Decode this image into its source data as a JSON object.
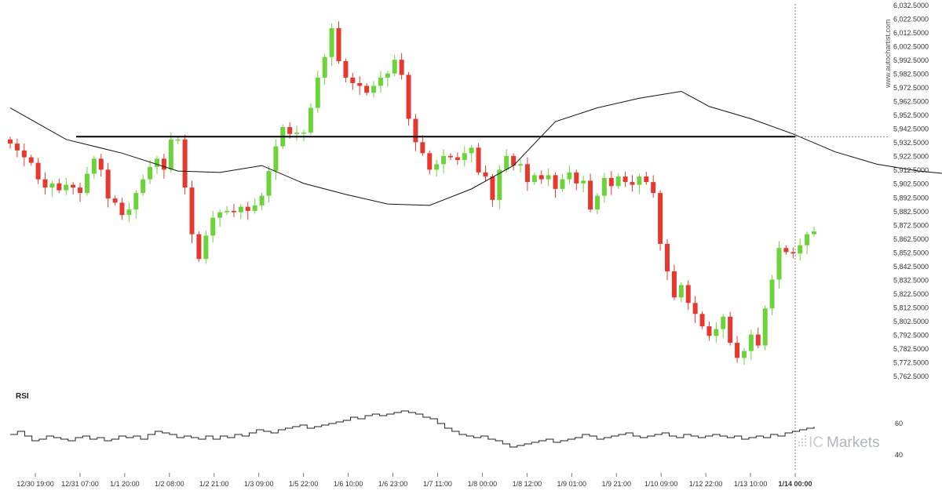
{
  "chart_data": [
    {
      "type": "candlestick",
      "title": "",
      "watermark": "www.autochartist.com",
      "y_tick_labels": [
        "6,032.5000",
        "6,022.5000",
        "6,012.5000",
        "6,002.5000",
        "5,992.5000",
        "5,982.5000",
        "5,972.5000",
        "5,962.5000",
        "5,952.5000",
        "5,942.5000",
        "5,932.5000",
        "5,922.5000",
        "5,912.5000",
        "5,902.5000",
        "5,892.5000",
        "5,882.5000",
        "5,872.5000",
        "5,862.5000",
        "5,852.5000",
        "5,842.5000",
        "5,832.5000",
        "5,822.5000",
        "5,812.5000",
        "5,802.5000",
        "5,792.5000",
        "5,782.5000",
        "5,772.5000",
        "5,762.5000"
      ],
      "ylim": [
        5762.5,
        6032.5
      ],
      "x_tick_labels": [
        "12/30 19:00",
        "12/31 07:00",
        "1/1 20:00",
        "1/2 08:00",
        "1/2 21:00",
        "1/3 09:00",
        "1/5 22:00",
        "1/6 10:00",
        "1/6 23:00",
        "1/7 11:00",
        "1/8 00:00",
        "1/8 12:00",
        "1/9 01:00",
        "1/9 21:00",
        "1/10 09:00",
        "1/12 22:00",
        "1/13 10:00",
        "1/14 00:00"
      ],
      "highlight_x_label": "1/14 00:00",
      "close_path": [
        5932,
        5927,
        5922,
        5918,
        5906,
        5900,
        5903,
        5898,
        5902,
        5900,
        5896,
        5910,
        5921,
        5913,
        5892,
        5889,
        5880,
        5884,
        5896,
        5906,
        5915,
        5921,
        5913,
        5935,
        5935,
        5900,
        5866,
        5848,
        5865,
        5878,
        5882,
        5883,
        5882,
        5886,
        5883,
        5887,
        5894,
        5912,
        5930,
        5944,
        5939,
        5940,
        5940,
        5958,
        5980,
        5995,
        6016,
        5992,
        5980,
        5976,
        5974,
        5969,
        5974,
        5980,
        5983,
        5993,
        5982,
        5950,
        5933,
        5925,
        5913,
        5917,
        5923,
        5922,
        5920,
        5925,
        5929,
        5911,
        5908,
        5891,
        5913,
        5923,
        5916,
        5917,
        5904,
        5909,
        5906,
        5909,
        5899,
        5906,
        5911,
        5903,
        5905,
        5884,
        5894,
        5907,
        5901,
        5908,
        5904,
        5902,
        5908,
        5904,
        5896,
        5859,
        5839,
        5820,
        5829,
        5816,
        5808,
        5799,
        5792,
        5797,
        5806,
        5787,
        5776,
        5781,
        5793,
        5785,
        5812,
        5833,
        5856,
        5853,
        5852,
        5858,
        5866,
        5868
      ],
      "moving_average": [
        {
          "x": 0,
          "y": 5958
        },
        {
          "x": 8,
          "y": 5935
        },
        {
          "x": 16,
          "y": 5925
        },
        {
          "x": 24,
          "y": 5912
        },
        {
          "x": 30,
          "y": 5911
        },
        {
          "x": 36,
          "y": 5916
        },
        {
          "x": 42,
          "y": 5903
        },
        {
          "x": 48,
          "y": 5895
        },
        {
          "x": 54,
          "y": 5888
        },
        {
          "x": 60,
          "y": 5887
        },
        {
          "x": 66,
          "y": 5899
        },
        {
          "x": 72,
          "y": 5916
        },
        {
          "x": 78,
          "y": 5948
        },
        {
          "x": 84,
          "y": 5958
        },
        {
          "x": 90,
          "y": 5965
        },
        {
          "x": 96,
          "y": 5970
        },
        {
          "x": 100,
          "y": 5959
        },
        {
          "x": 106,
          "y": 5950
        },
        {
          "x": 112,
          "y": 5939
        },
        {
          "x": 118,
          "y": 5926
        },
        {
          "x": 124,
          "y": 5917
        },
        {
          "x": 130,
          "y": 5912
        },
        {
          "x": 136,
          "y": 5909
        },
        {
          "x": 140,
          "y": 5904
        },
        {
          "x": 146,
          "y": 5901
        },
        {
          "x": 150,
          "y": 5903
        },
        {
          "x": 154,
          "y": 5888
        },
        {
          "x": 160,
          "y": 5862
        },
        {
          "x": 166,
          "y": 5840
        },
        {
          "x": 170,
          "y": 5826
        },
        {
          "x": 174,
          "y": 5827
        },
        {
          "x": 178,
          "y": 5834
        },
        {
          "x": 182,
          "y": 5839
        },
        {
          "x": 186,
          "y": 5843
        }
      ],
      "resistance_level": 5937,
      "projection": {
        "from_x": 183,
        "from_y": 5864,
        "to_x": 203,
        "to_y": 5935
      },
      "rsi": {
        "label": "RSI",
        "y_tick_labels": [
          "60",
          "40"
        ],
        "ylim": [
          35,
          75
        ],
        "values": [
          53,
          55,
          52,
          49,
          50,
          52,
          51,
          50,
          49,
          51,
          52,
          50,
          51,
          49,
          50,
          52,
          51,
          52,
          50,
          53,
          55,
          54,
          53,
          51,
          52,
          51,
          50,
          52,
          50,
          52,
          51,
          53,
          52,
          54,
          56,
          55,
          54,
          56,
          57,
          58,
          59,
          57,
          58,
          59,
          60,
          61,
          62,
          64,
          63,
          65,
          66,
          65,
          66,
          67,
          68,
          67,
          66,
          64,
          63,
          60,
          57,
          55,
          53,
          52,
          51,
          52,
          50,
          49,
          47,
          45,
          46,
          47,
          48,
          49,
          50,
          48,
          49,
          50,
          51,
          53,
          52,
          50,
          51,
          52,
          53,
          54,
          52,
          51,
          52,
          53,
          54,
          52,
          51,
          53,
          52,
          51,
          52,
          53,
          52,
          51,
          52,
          50,
          51,
          52,
          51,
          53,
          52,
          54,
          55,
          56,
          57,
          58
        ]
      }
    }
  ],
  "brand": {
    "prefix": "IC",
    "name": "Markets"
  }
}
